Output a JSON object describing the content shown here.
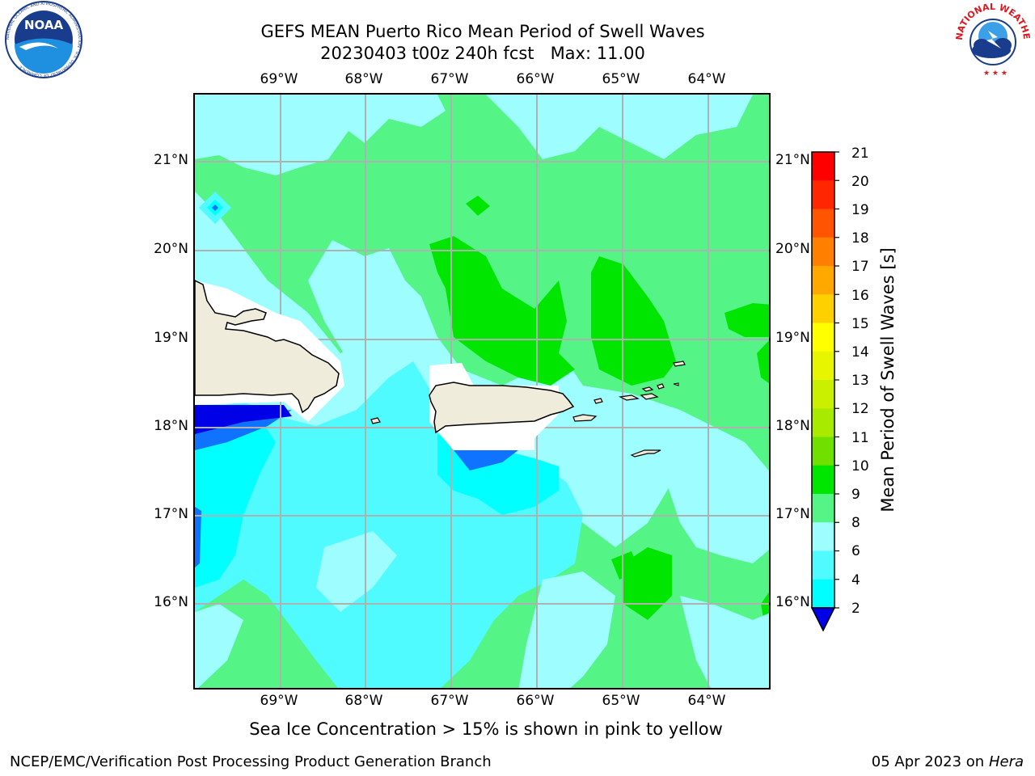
{
  "header": {
    "title_line1": "GEFS MEAN Puerto Rico Mean Period of Swell Waves",
    "title_line2": "20230403 t00z 240h fcst   Max: 11.00"
  },
  "logos": {
    "left": "NOAA",
    "left_ring_text": "NATIONAL OCEANIC AND ATMOSPHERIC ADMINISTRATION · U.S. DEPARTMENT OF COMMERCE",
    "right_ring_text": "NATIONAL WEATHER SERVICE"
  },
  "map": {
    "lon_ticks": [
      "69°W",
      "68°W",
      "67°W",
      "66°W",
      "65°W",
      "64°W"
    ],
    "lat_ticks": [
      "21°N",
      "20°N",
      "19°N",
      "18°N",
      "17°N",
      "16°N"
    ],
    "land_color": "#efecdc",
    "ocean_colors": {
      "c2_4": "#0f73ff",
      "c4_6": "#00ffff",
      "c6_8": "#4ffbff",
      "c8_9": "#9dfdff",
      "c9_10": "#54f487",
      "c10_11": "#00e600"
    }
  },
  "colorbar": {
    "label": "Mean Period of Swell Waves [s]",
    "ticks": [
      "21",
      "20",
      "19",
      "18",
      "17",
      "16",
      "15",
      "14",
      "13",
      "12",
      "11",
      "10",
      "9",
      "8",
      "6",
      "4",
      "2"
    ],
    "colors": [
      "#ff0000",
      "#ff2600",
      "#ff5500",
      "#ff8000",
      "#ffa800",
      "#ffd000",
      "#ffff00",
      "#e8f500",
      "#caf000",
      "#a8eb00",
      "#6fe000",
      "#00e600",
      "#54f487",
      "#9dfdff",
      "#4ffbff",
      "#00ffff",
      "#0f73ff",
      "#0000e6"
    ]
  },
  "caption": "Sea Ice Concentration > 15% is shown in pink to yellow",
  "footer": {
    "left": "NCEP/EMC/Verification Post Processing Product Generation Branch",
    "date": "05 Apr 2023 on ",
    "host": "Hera"
  }
}
